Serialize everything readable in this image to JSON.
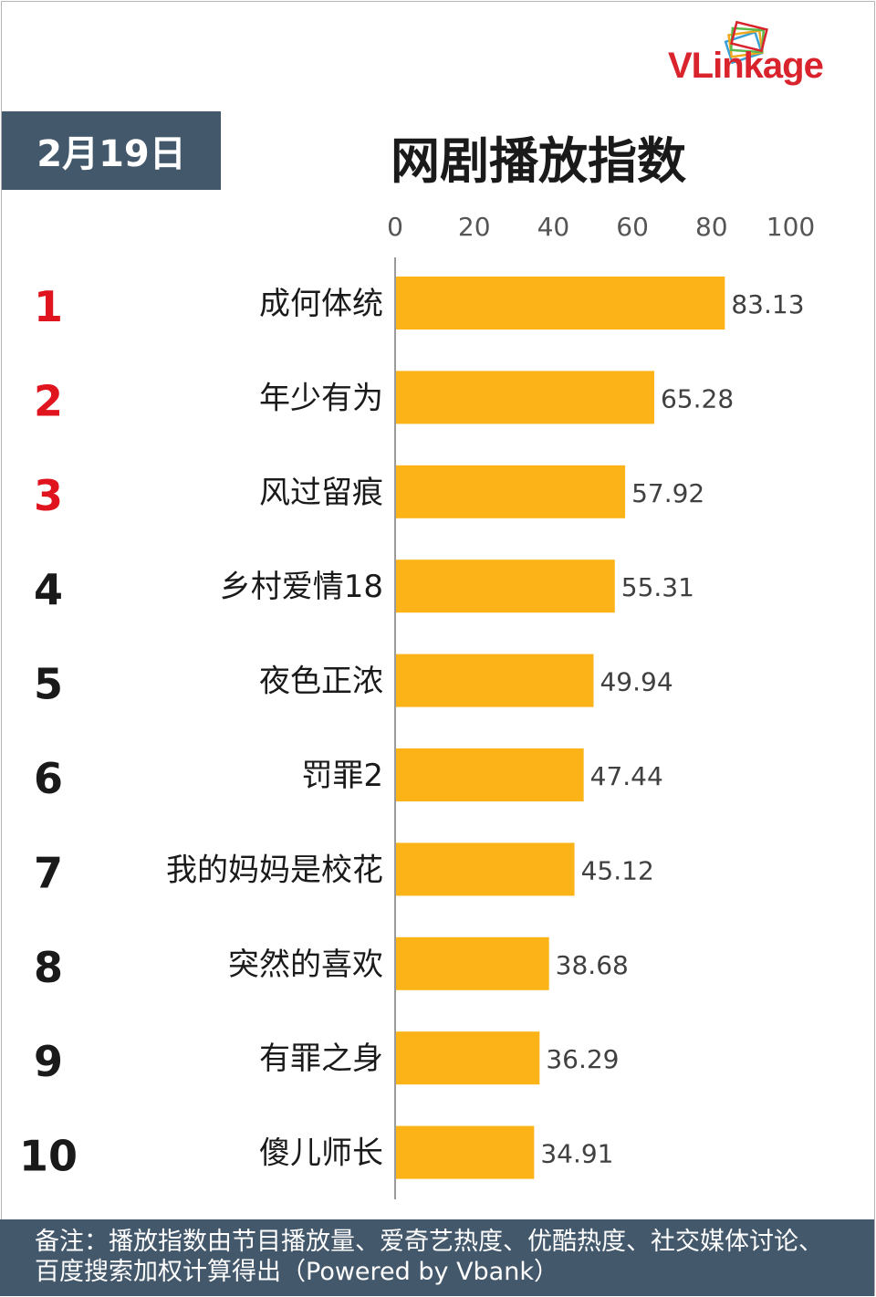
{
  "header": {
    "date_label": "2月19日",
    "title": "网剧播放指数",
    "logo": {
      "text_vl": "VL",
      "text_rest": "inkage",
      "text_ink": "ink",
      "text_age": "age"
    }
  },
  "chart_data": {
    "type": "bar",
    "orientation": "horizontal",
    "title": "网剧播放指数",
    "xlim": [
      0,
      100
    ],
    "xticks": [
      "0",
      "20",
      "40",
      "60",
      "80",
      "100"
    ],
    "categories": [
      "成何体统",
      "年少有为",
      "风过留痕",
      "乡村爱情18",
      "夜色正浓",
      "罚罪2",
      "我的妈妈是校花",
      "突然的喜欢",
      "有罪之身",
      "傻儿师长"
    ],
    "ranks": [
      "1",
      "2",
      "3",
      "4",
      "5",
      "6",
      "7",
      "8",
      "9",
      "10"
    ],
    "values": [
      83.13,
      65.28,
      57.92,
      55.31,
      49.94,
      47.44,
      45.12,
      38.68,
      36.29,
      34.91
    ],
    "value_labels": [
      "83.13",
      "65.28",
      "57.92",
      "55.31",
      "49.94",
      "47.44",
      "45.12",
      "38.68",
      "36.29",
      "34.91"
    ],
    "bar_color": "#fbb318",
    "top_rank_color": "#e0141e",
    "rank_color": "#1a1a1a",
    "grid": false,
    "legend": "none"
  },
  "footer": {
    "note": "备注：播放指数由节目播放量、爱奇艺热度、优酷热度、社交媒体讨论、百度搜索加权计算得出（Powered by Vbank）"
  }
}
